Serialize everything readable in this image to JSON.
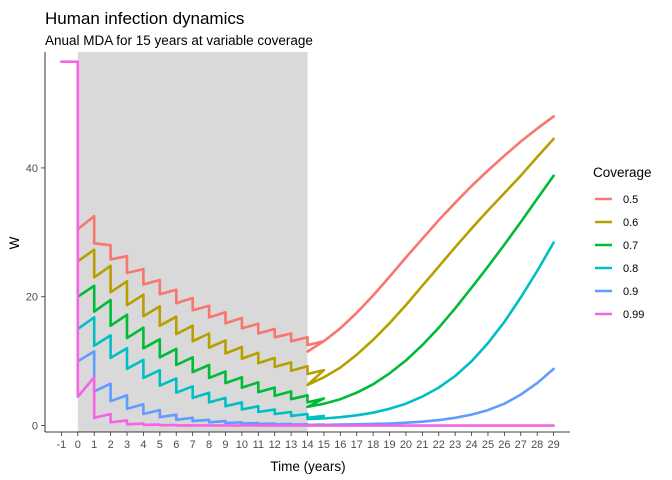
{
  "chart_data": {
    "type": "line",
    "title": "Human infection dynamics",
    "subtitle": "Anual MDA for 15 years at variable coverage",
    "xlabel": "Time (years)",
    "ylabel": "W",
    "xlim": [
      -2,
      30
    ],
    "ylim": [
      -1,
      58
    ],
    "x_ticks": [
      -1,
      0,
      1,
      2,
      3,
      4,
      5,
      6,
      7,
      8,
      9,
      10,
      11,
      12,
      13,
      14,
      15,
      16,
      17,
      18,
      19,
      20,
      21,
      22,
      23,
      24,
      25,
      26,
      27,
      28,
      29
    ],
    "y_ticks": [
      0,
      20,
      40
    ],
    "grid": false,
    "shaded_region": {
      "x_start": 0,
      "x_end": 14,
      "color": "#d9d9d9"
    },
    "legend": {
      "title": "Coverage",
      "position": "right"
    },
    "pre_treatment_level": 56.5,
    "series": [
      {
        "name": "0.5",
        "color": "#F8766D",
        "mda_start": [
          30.5,
          28.3,
          25.8,
          23.7,
          21.9,
          20.4,
          19.0,
          17.9,
          16.8,
          15.9,
          15.1,
          14.3,
          13.7,
          13.1,
          12.5
        ],
        "mda_end": [
          32.5,
          28.0,
          26.3,
          24.3,
          22.6,
          21.1,
          19.8,
          18.6,
          17.6,
          16.7,
          15.8,
          15.0,
          14.3,
          13.7,
          13.1
        ],
        "post": [
          [
            14,
            11.5
          ],
          [
            15,
            13.1
          ],
          [
            16,
            15.1
          ],
          [
            17,
            17.5
          ],
          [
            18,
            20.2
          ],
          [
            19,
            23.1
          ],
          [
            20,
            26.1
          ],
          [
            21,
            29.0
          ],
          [
            22,
            31.9
          ],
          [
            23,
            34.6
          ],
          [
            24,
            37.2
          ],
          [
            25,
            39.6
          ],
          [
            26,
            41.9
          ],
          [
            27,
            44.1
          ],
          [
            28,
            46.1
          ],
          [
            29,
            48.0
          ]
        ]
      },
      {
        "name": "0.6",
        "color": "#B79F00",
        "mda_start": [
          25.5,
          23.0,
          20.7,
          18.7,
          17.0,
          15.5,
          14.2,
          13.1,
          12.1,
          11.2,
          10.4,
          9.7,
          9.1,
          8.5,
          8.0
        ],
        "mda_end": [
          27.3,
          24.8,
          22.4,
          20.3,
          18.5,
          16.9,
          15.5,
          14.3,
          13.2,
          12.2,
          11.3,
          10.5,
          9.8,
          9.2,
          8.6
        ],
        "post": [
          [
            14,
            6.3
          ],
          [
            15,
            7.5
          ],
          [
            16,
            9.0
          ],
          [
            17,
            11.0
          ],
          [
            18,
            13.3
          ],
          [
            19,
            15.9
          ],
          [
            20,
            18.7
          ],
          [
            21,
            21.7
          ],
          [
            22,
            24.7
          ],
          [
            23,
            27.7
          ],
          [
            24,
            30.6
          ],
          [
            25,
            33.4
          ],
          [
            26,
            36.1
          ],
          [
            27,
            38.8
          ],
          [
            28,
            41.7
          ],
          [
            29,
            44.5
          ]
        ]
      },
      {
        "name": "0.7",
        "color": "#00BA38",
        "mda_start": [
          20.0,
          17.7,
          15.5,
          13.6,
          12.0,
          10.6,
          9.4,
          8.3,
          7.4,
          6.6,
          5.9,
          5.2,
          4.6,
          4.1,
          3.6
        ],
        "mda_end": [
          21.7,
          19.5,
          17.2,
          15.2,
          13.4,
          11.9,
          10.6,
          9.4,
          8.4,
          7.5,
          6.7,
          5.9,
          5.3,
          4.7,
          4.2
        ],
        "post": [
          [
            14,
            2.9
          ],
          [
            15,
            3.4
          ],
          [
            16,
            4.1
          ],
          [
            17,
            5.1
          ],
          [
            18,
            6.4
          ],
          [
            19,
            8.1
          ],
          [
            20,
            10.1
          ],
          [
            21,
            12.5
          ],
          [
            22,
            15.2
          ],
          [
            23,
            18.2
          ],
          [
            24,
            21.4
          ],
          [
            25,
            24.7
          ],
          [
            26,
            28.1
          ],
          [
            27,
            31.6
          ],
          [
            28,
            35.2
          ],
          [
            29,
            38.8
          ]
        ]
      },
      {
        "name": "0.8",
        "color": "#00BFC4",
        "mda_start": [
          15.0,
          12.4,
          10.5,
          8.8,
          7.4,
          6.2,
          5.1,
          4.3,
          3.6,
          3.0,
          2.5,
          2.1,
          1.8,
          1.5,
          1.2
        ],
        "mda_end": [
          16.8,
          14.0,
          12.0,
          10.2,
          8.6,
          7.3,
          6.1,
          5.1,
          4.3,
          3.6,
          3.0,
          2.5,
          2.1,
          1.8,
          1.5
        ],
        "post": [
          [
            14,
            1.0
          ],
          [
            15,
            1.1
          ],
          [
            16,
            1.3
          ],
          [
            17,
            1.6
          ],
          [
            18,
            2.0
          ],
          [
            19,
            2.6
          ],
          [
            20,
            3.4
          ],
          [
            21,
            4.5
          ],
          [
            22,
            5.9
          ],
          [
            23,
            7.7
          ],
          [
            24,
            10.0
          ],
          [
            25,
            12.8
          ],
          [
            26,
            16.1
          ],
          [
            27,
            19.9
          ],
          [
            28,
            24.0
          ],
          [
            29,
            28.4
          ]
        ]
      },
      {
        "name": "0.9",
        "color": "#619CFF",
        "mda_start": [
          10.0,
          5.3,
          3.8,
          2.6,
          1.8,
          1.3,
          0.9,
          0.7,
          0.5,
          0.4,
          0.3,
          0.25,
          0.2,
          0.15,
          0.1
        ],
        "mda_end": [
          11.5,
          6.5,
          4.7,
          3.3,
          2.4,
          1.7,
          1.2,
          0.9,
          0.7,
          0.5,
          0.4,
          0.3,
          0.25,
          0.2,
          0.15
        ],
        "post": [
          [
            14,
            0.1
          ],
          [
            15,
            0.1
          ],
          [
            16,
            0.15
          ],
          [
            17,
            0.2
          ],
          [
            18,
            0.25
          ],
          [
            19,
            0.3
          ],
          [
            20,
            0.45
          ],
          [
            21,
            0.6
          ],
          [
            22,
            0.85
          ],
          [
            23,
            1.2
          ],
          [
            24,
            1.7
          ],
          [
            25,
            2.4
          ],
          [
            26,
            3.4
          ],
          [
            27,
            4.8
          ],
          [
            28,
            6.6
          ],
          [
            29,
            8.8
          ]
        ]
      },
      {
        "name": "0.99",
        "color": "#F564E3",
        "mda_start": [
          4.5,
          1.2,
          0.5,
          0.2,
          0.1,
          0.05,
          0.02,
          0.02,
          0.01,
          0.01,
          0.01,
          0.0,
          0.0,
          0.0,
          0.0
        ],
        "mda_end": [
          7.5,
          1.8,
          0.8,
          0.3,
          0.15,
          0.08,
          0.04,
          0.03,
          0.02,
          0.01,
          0.01,
          0.0,
          0.0,
          0.0,
          0.0
        ],
        "post": [
          [
            14,
            0.0
          ],
          [
            29,
            0.0
          ]
        ]
      }
    ]
  }
}
